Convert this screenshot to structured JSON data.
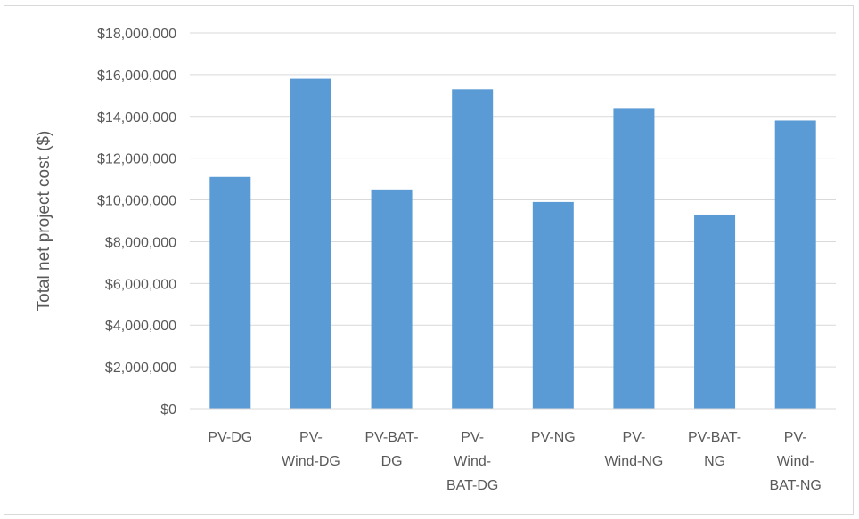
{
  "chart_data": {
    "type": "bar",
    "title": "",
    "xlabel": "",
    "ylabel": "Total net project cost ($)",
    "ylim": [
      0,
      18000000
    ],
    "y_ticks": [
      0,
      2000000,
      4000000,
      6000000,
      8000000,
      10000000,
      12000000,
      14000000,
      16000000,
      18000000
    ],
    "y_tick_labels": [
      "$0",
      "$2,000,000",
      "$4,000,000",
      "$6,000,000",
      "$8,000,000",
      "$10,000,000",
      "$12,000,000",
      "$14,000,000",
      "$16,000,000",
      "$18,000,000"
    ],
    "categories": [
      "PV-DG",
      "PV-Wind-DG",
      "PV-BAT-DG",
      "PV-Wind-BAT-DG",
      "PV-NG",
      "PV-Wind-NG",
      "PV-BAT-NG",
      "PV-Wind-BAT-NG"
    ],
    "category_label_lines": [
      [
        "PV-DG"
      ],
      [
        "PV-",
        "Wind-DG"
      ],
      [
        "PV-BAT-",
        "DG"
      ],
      [
        "PV-",
        "Wind-",
        "BAT-DG"
      ],
      [
        "PV-NG"
      ],
      [
        "PV-",
        "Wind-NG"
      ],
      [
        "PV-BAT-",
        "NG"
      ],
      [
        "PV-",
        "Wind-",
        "BAT-NG"
      ]
    ],
    "values": [
      11100000,
      15800000,
      10500000,
      15300000,
      9900000,
      14400000,
      9300000,
      13800000
    ],
    "bar_color": "#5b9bd5",
    "grid": true,
    "gridline_color": "#d9d9d9",
    "legend": "none"
  }
}
